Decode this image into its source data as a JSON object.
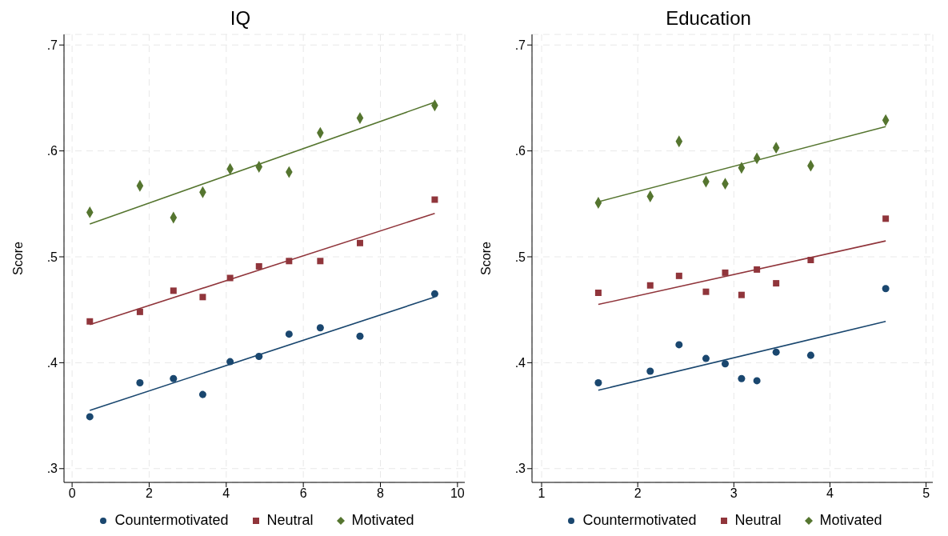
{
  "chart_data": [
    {
      "type": "scatter",
      "title": "IQ",
      "ylabel": "Score",
      "xlim": [
        -0.21,
        10.19
      ],
      "xticks": [
        0,
        2,
        4,
        6,
        8,
        10
      ],
      "ylim": [
        0.287,
        0.71
      ],
      "yticks": [
        {
          "value": 0.3,
          "label": ".3"
        },
        {
          "value": 0.4,
          "label": ".4"
        },
        {
          "value": 0.5,
          "label": ".5"
        },
        {
          "value": 0.6,
          "label": ".6"
        },
        {
          "value": 0.7,
          "label": ".7"
        }
      ],
      "grid": true,
      "legend": "bottom",
      "series": [
        {
          "name": "Countermotivated",
          "color": "#1a476f",
          "marker": "circle",
          "x": [
            0.46,
            1.76,
            2.63,
            3.39,
            4.1,
            4.85,
            5.63,
            6.44,
            7.47,
            9.41
          ],
          "values": [
            0.349,
            0.381,
            0.385,
            0.37,
            0.401,
            0.406,
            0.427,
            0.433,
            0.425,
            0.465
          ]
        },
        {
          "name": "Neutral",
          "color": "#90353b",
          "marker": "square",
          "x": [
            0.46,
            1.76,
            2.63,
            3.39,
            4.1,
            4.85,
            5.63,
            6.44,
            7.47,
            9.41
          ],
          "values": [
            0.439,
            0.448,
            0.468,
            0.462,
            0.48,
            0.491,
            0.496,
            0.496,
            0.513,
            0.554
          ]
        },
        {
          "name": "Motivated",
          "color": "#55752f",
          "marker": "diamond",
          "x": [
            0.46,
            1.76,
            2.63,
            3.39,
            4.1,
            4.85,
            5.63,
            6.44,
            7.47,
            9.41
          ],
          "values": [
            0.542,
            0.567,
            0.537,
            0.561,
            0.583,
            0.585,
            0.58,
            0.617,
            0.631,
            0.643
          ]
        },
        {
          "type": "line",
          "color": "#1a476f",
          "x": [
            0.46,
            9.41
          ],
          "values": [
            0.355,
            0.462
          ]
        },
        {
          "type": "line",
          "color": "#90353b",
          "x": [
            0.46,
            9.41
          ],
          "values": [
            0.436,
            0.541
          ]
        },
        {
          "type": "line",
          "color": "#55752f",
          "x": [
            0.46,
            9.41
          ],
          "values": [
            0.531,
            0.646
          ]
        }
      ]
    },
    {
      "type": "scatter",
      "title": "Education",
      "ylabel": "Score",
      "xlim": [
        0.9,
        5.07
      ],
      "xticks": [
        1,
        2,
        3,
        4,
        5
      ],
      "ylim": [
        0.287,
        0.71
      ],
      "yticks": [
        {
          "value": 0.3,
          "label": ".3"
        },
        {
          "value": 0.4,
          "label": ".4"
        },
        {
          "value": 0.5,
          "label": ".5"
        },
        {
          "value": 0.6,
          "label": ".6"
        },
        {
          "value": 0.7,
          "label": ".7"
        }
      ],
      "grid": true,
      "legend": "bottom",
      "series": [
        {
          "name": "Countermotivated",
          "color": "#1a476f",
          "marker": "circle",
          "x": [
            1.59,
            2.13,
            2.43,
            2.71,
            2.91,
            3.08,
            3.24,
            3.44,
            3.8,
            4.58
          ],
          "values": [
            0.381,
            0.392,
            0.417,
            0.404,
            0.399,
            0.385,
            0.383,
            0.41,
            0.407,
            0.47
          ]
        },
        {
          "name": "Neutral",
          "color": "#90353b",
          "marker": "square",
          "x": [
            1.59,
            2.13,
            2.43,
            2.71,
            2.91,
            3.08,
            3.24,
            3.44,
            3.8,
            4.58
          ],
          "values": [
            0.466,
            0.473,
            0.482,
            0.467,
            0.485,
            0.464,
            0.488,
            0.475,
            0.497,
            0.536
          ]
        },
        {
          "name": "Motivated",
          "color": "#55752f",
          "marker": "diamond",
          "x": [
            1.59,
            2.13,
            2.43,
            2.71,
            2.91,
            3.08,
            3.24,
            3.44,
            3.8,
            4.58
          ],
          "values": [
            0.551,
            0.557,
            0.609,
            0.571,
            0.569,
            0.584,
            0.593,
            0.603,
            0.586,
            0.629
          ]
        },
        {
          "type": "line",
          "color": "#1a476f",
          "x": [
            1.59,
            4.58
          ],
          "values": [
            0.374,
            0.439
          ]
        },
        {
          "type": "line",
          "color": "#90353b",
          "x": [
            1.59,
            4.58
          ],
          "values": [
            0.455,
            0.515
          ]
        },
        {
          "type": "line",
          "color": "#55752f",
          "x": [
            1.59,
            4.58
          ],
          "values": [
            0.552,
            0.623
          ]
        }
      ]
    }
  ]
}
